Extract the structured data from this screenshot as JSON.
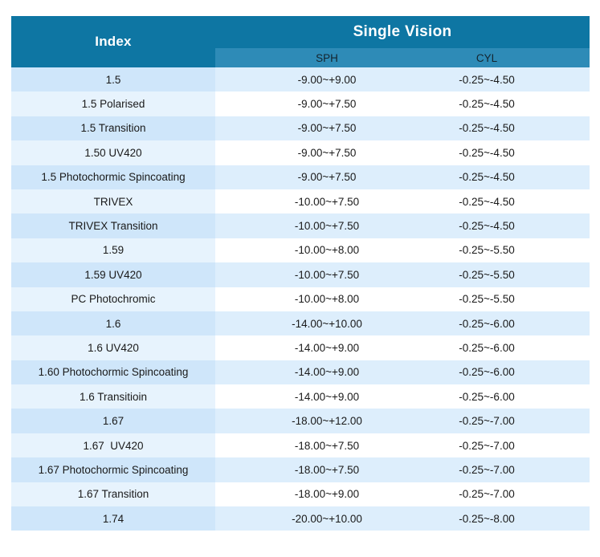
{
  "table": {
    "index_header": "Index",
    "group_header": "Single Vision",
    "columns": [
      "SPH",
      "CYL"
    ],
    "colors": {
      "header_background": "#0e76a3",
      "subheader_background": "#2e8bb7",
      "header_text": "#ffffff",
      "odd_row_index_background": "#cfe6fa",
      "odd_row_data_background": "#ddeefc",
      "even_row_index_background": "#e7f3fd",
      "even_row_data_background": "#ffffff",
      "body_text": "#1a1a1a"
    },
    "rows": [
      {
        "index": "1.5",
        "sph": "-9.00~+9.00",
        "cyl": "-0.25~-4.50"
      },
      {
        "index": "1.5 Polarised",
        "sph": "-9.00~+7.50",
        "cyl": "-0.25~-4.50"
      },
      {
        "index": "1.5 Transition",
        "sph": "-9.00~+7.50",
        "cyl": "-0.25~-4.50"
      },
      {
        "index": "1.50 UV420",
        "sph": "-9.00~+7.50",
        "cyl": "-0.25~-4.50"
      },
      {
        "index": "1.5 Photochormic Spincoating",
        "sph": "-9.00~+7.50",
        "cyl": "-0.25~-4.50"
      },
      {
        "index": "TRIVEX",
        "sph": "-10.00~+7.50",
        "cyl": "-0.25~-4.50"
      },
      {
        "index": "TRIVEX Transition",
        "sph": "-10.00~+7.50",
        "cyl": "-0.25~-4.50"
      },
      {
        "index": "1.59",
        "sph": "-10.00~+8.00",
        "cyl": "-0.25~-5.50"
      },
      {
        "index": "1.59 UV420",
        "sph": "-10.00~+7.50",
        "cyl": "-0.25~-5.50"
      },
      {
        "index": "PC Photochromic",
        "sph": "-10.00~+8.00",
        "cyl": "-0.25~-5.50"
      },
      {
        "index": "1.6",
        "sph": "-14.00~+10.00",
        "cyl": "-0.25~-6.00"
      },
      {
        "index": "1.6 UV420",
        "sph": "-14.00~+9.00",
        "cyl": "-0.25~-6.00"
      },
      {
        "index": "1.60 Photochormic Spincoating",
        "sph": "-14.00~+9.00",
        "cyl": "-0.25~-6.00"
      },
      {
        "index": "1.6 Transitioin",
        "sph": "-14.00~+9.00",
        "cyl": "-0.25~-6.00"
      },
      {
        "index": "1.67",
        "sph": "-18.00~+12.00",
        "cyl": "-0.25~-7.00"
      },
      {
        "index": "1.67  UV420",
        "sph": "-18.00~+7.50",
        "cyl": "-0.25~-7.00"
      },
      {
        "index": "1.67 Photochormic Spincoating",
        "sph": "-18.00~+7.50",
        "cyl": "-0.25~-7.00"
      },
      {
        "index": "1.67 Transition",
        "sph": "-18.00~+9.00",
        "cyl": "-0.25~-7.00"
      },
      {
        "index": "1.74",
        "sph": "-20.00~+10.00",
        "cyl": "-0.25~-8.00"
      }
    ]
  }
}
